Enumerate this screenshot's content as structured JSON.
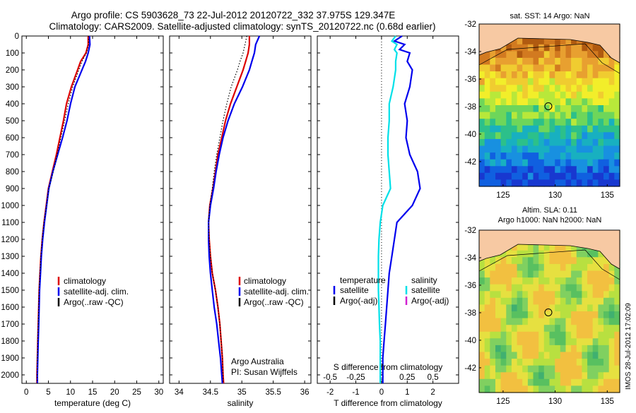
{
  "header": {
    "line1": "Argo profile: CS 5903628_73 22-Jul-2012 20120722_332 37.975S 129.347E",
    "line2": "Climatology: CARS2009. Satellite-adjusted climatology: synTS_20120722.nc (0.68d earlier)"
  },
  "credit": "IMOS 28-Jul-2012 17:02:09",
  "colors": {
    "climatology": "#dd0000",
    "satellite": "#0000ee",
    "argo": "#000000",
    "sal_satellite": "#00e0e8",
    "sal_argo": "#d020d0",
    "land": "#f7c9a3"
  },
  "chart_data": [
    {
      "type": "line",
      "name": "temperature-panel",
      "xlabel": "temperature (deg C)",
      "ylim": [
        2050,
        0
      ],
      "xlim": [
        -1,
        31
      ],
      "xticks": [
        0,
        5,
        10,
        15,
        20,
        25,
        30
      ],
      "yticks": [
        0,
        100,
        200,
        300,
        400,
        500,
        600,
        700,
        800,
        900,
        1000,
        1100,
        1200,
        1300,
        1400,
        1500,
        1600,
        1700,
        1800,
        1900,
        2000
      ],
      "legend": [
        "climatology",
        "satellite-adj. clim.",
        "Argo(..raw -QC)"
      ],
      "depth": [
        0,
        50,
        100,
        150,
        200,
        300,
        400,
        500,
        600,
        700,
        800,
        900,
        1000,
        1100,
        1200,
        1300,
        1400,
        1500,
        1600,
        1700,
        1800,
        1900,
        2000,
        2050
      ],
      "series": [
        {
          "name": "climatology",
          "values": [
            14.0,
            14.0,
            13.5,
            12.3,
            11.6,
            10.2,
            9.1,
            8.4,
            7.6,
            6.8,
            5.9,
            5.0,
            4.5,
            4.0,
            3.6,
            3.3,
            3.1,
            2.9,
            2.8,
            2.7,
            2.6,
            2.5,
            2.4,
            2.4
          ]
        },
        {
          "name": "satellite-adj. clim.",
          "values": [
            14.3,
            14.4,
            14.0,
            13.4,
            12.6,
            11.0,
            10.0,
            9.2,
            8.2,
            7.1,
            6.0,
            5.1,
            4.6,
            4.1,
            3.7,
            3.4,
            3.2,
            3.0,
            2.9,
            2.8,
            2.7,
            2.6,
            2.5,
            2.5
          ]
        },
        {
          "name": "Argo(..raw -QC)",
          "values": [
            14.1,
            14.1,
            13.6,
            12.6,
            11.9,
            10.5,
            9.5,
            8.7,
            7.8,
            7.0,
            6.1,
            5.1,
            4.6,
            4.0,
            3.6,
            3.3,
            3.1,
            2.9,
            2.8,
            2.7,
            2.6,
            2.5,
            2.45,
            2.45
          ]
        }
      ]
    },
    {
      "type": "line",
      "name": "salinity-panel",
      "xlabel": "salinity",
      "ylim": [
        2050,
        0
      ],
      "xlim": [
        33.85,
        36.1
      ],
      "xticks": [
        34,
        34.5,
        35,
        35.5,
        36
      ],
      "xticklabels": [
        "34",
        "34.5",
        "35",
        "35.5",
        "36"
      ],
      "legend": [
        "climatology",
        "satellite-adj. clim.",
        "Argo(..raw -QC)"
      ],
      "annotations": [
        "Argo Australia",
        "PI: Susan Wijffels"
      ],
      "depth": [
        0,
        50,
        100,
        150,
        200,
        300,
        400,
        500,
        600,
        700,
        800,
        900,
        1000,
        1100,
        1200,
        1300,
        1400,
        1500,
        1600,
        1700,
        1800,
        1900,
        2000,
        2050
      ],
      "series": [
        {
          "name": "climatology",
          "values": [
            35.12,
            35.12,
            35.1,
            35.06,
            35.02,
            34.92,
            34.82,
            34.74,
            34.68,
            34.62,
            34.58,
            34.54,
            34.49,
            34.47,
            34.48,
            34.5,
            34.53,
            34.58,
            34.62,
            34.65,
            34.67,
            34.69,
            34.7,
            34.71
          ]
        },
        {
          "name": "satellite-adj. clim.",
          "values": [
            35.28,
            35.22,
            35.2,
            35.16,
            35.12,
            35.01,
            34.88,
            34.78,
            34.7,
            34.64,
            34.59,
            34.55,
            34.5,
            34.47,
            34.47,
            34.48,
            34.5,
            34.53,
            34.56,
            34.6,
            34.63,
            34.66,
            34.68,
            34.69
          ]
        },
        {
          "name": "Argo(..raw -QC)",
          "values": [
            35.08,
            35.05,
            35.02,
            34.97,
            34.93,
            34.83,
            34.76,
            34.7,
            34.65,
            34.6,
            34.56,
            34.53,
            34.49,
            34.47,
            34.48,
            34.5,
            34.53,
            34.58,
            34.62,
            34.65,
            34.67,
            34.69,
            34.7,
            34.7
          ]
        }
      ]
    },
    {
      "type": "line",
      "name": "difference-panel",
      "xlabel": "T difference from climatology",
      "top_axis_label": "S difference from climatology",
      "ylim": [
        2050,
        0
      ],
      "xlim": [
        -2.5,
        3
      ],
      "xticks": [
        -2,
        -1,
        0,
        1,
        2
      ],
      "xticklabels": [
        "-2",
        "-1",
        "0",
        "1",
        "2"
      ],
      "s_ticks": [
        "-0.5",
        "-0.25",
        "0",
        "0.25",
        "0.5"
      ],
      "legend_temperature": [
        "temperature",
        "satellite",
        "Argo(-adj)"
      ],
      "legend_salinity": [
        "salinity",
        "satellite",
        "Argo(-adj)"
      ],
      "depth": [
        0,
        30,
        50,
        80,
        100,
        150,
        200,
        300,
        400,
        500,
        600,
        700,
        800,
        900,
        1000,
        1100,
        1200,
        1300,
        1400,
        1500,
        1600,
        1700,
        1800,
        1900,
        2000,
        2050
      ],
      "series": [
        {
          "name": "temperature satellite",
          "values": [
            0.8,
            0.5,
            0.9,
            0.7,
            1.1,
            1.0,
            1.2,
            1.1,
            0.9,
            1.0,
            0.95,
            1.1,
            1.4,
            1.5,
            1.2,
            0.6,
            0.5,
            0.4,
            0.3,
            0.25,
            0.2,
            0.15,
            0.1,
            0.05,
            0.05,
            0.05
          ]
        },
        {
          "name": "salinity satellite",
          "values": [
            0.55,
            0.4,
            0.6,
            0.5,
            0.6,
            0.55,
            0.55,
            0.45,
            0.3,
            0.3,
            0.25,
            0.25,
            0.3,
            0.35,
            0.05,
            -0.05,
            -0.1,
            -0.12,
            -0.12,
            -0.12,
            -0.1,
            -0.08,
            -0.05,
            -0.05,
            -0.05,
            -0.05
          ]
        }
      ]
    },
    {
      "type": "heatmap",
      "name": "sst-map",
      "title": "sat. SST: 14 Argo: NaN",
      "xlim": [
        122.7,
        136.2
      ],
      "ylim": [
        -43.8,
        -32
      ],
      "xticks": [
        125,
        130,
        135
      ],
      "yticks": [
        -32,
        -34,
        -36,
        -38,
        -40,
        -42
      ],
      "marker": {
        "lon": 129.347,
        "lat": -37.975
      }
    },
    {
      "type": "heatmap",
      "name": "sla-map",
      "title_line1": "Altim. SLA: 0.11",
      "title_line2": "Argo h1000: NaN h2000: NaN",
      "xlim": [
        122.7,
        136.2
      ],
      "ylim": [
        -43.8,
        -32
      ],
      "xticks": [
        125,
        130,
        135
      ],
      "yticks": [
        -32,
        -34,
        -36,
        -38,
        -40,
        -42
      ],
      "marker": {
        "lon": 129.347,
        "lat": -37.975
      }
    }
  ]
}
